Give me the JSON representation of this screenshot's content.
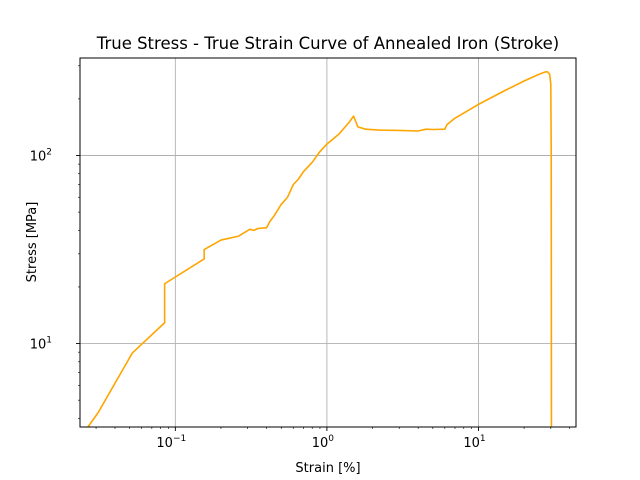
{
  "chart_data": {
    "type": "line",
    "title": "True Stress - True Strain Curve of Annealed Iron (Stroke)",
    "xlabel": "Strain [%]",
    "ylabel": "Stress [MPa]",
    "xscale": "log",
    "yscale": "log",
    "xlim": [
      0.0235,
      44
    ],
    "ylim": [
      3.6,
      330
    ],
    "grid": true,
    "x_ticks": [
      {
        "value": 0.1,
        "base": "10",
        "exp": "−1"
      },
      {
        "value": 1,
        "base": "10",
        "exp": "0"
      },
      {
        "value": 10,
        "base": "10",
        "exp": "1"
      }
    ],
    "y_ticks": [
      {
        "value": 10,
        "base": "10",
        "exp": "1"
      },
      {
        "value": 100,
        "base": "10",
        "exp": "2"
      }
    ],
    "series": [
      {
        "color": "#ffa500",
        "x": [
          0.0265,
          0.031,
          0.052,
          0.085,
          0.085,
          0.155,
          0.155,
          0.2,
          0.26,
          0.31,
          0.33,
          0.35,
          0.4,
          0.42,
          0.45,
          0.5,
          0.55,
          0.6,
          0.65,
          0.7,
          0.8,
          0.9,
          1.0,
          1.2,
          1.4,
          1.5,
          1.6,
          1.8,
          2.2,
          3,
          4,
          4.5,
          5,
          6,
          6.2,
          7,
          10,
          15,
          20,
          25,
          27.5,
          28.5,
          29.5,
          30.0,
          30.2,
          30.3
        ],
        "y": [
          3.6,
          4.3,
          8.9,
          12.9,
          20.8,
          28.2,
          31.6,
          35.5,
          37.2,
          40.5,
          40.0,
          40.9,
          41.3,
          44.5,
          48.0,
          55.0,
          60.0,
          70.0,
          75.0,
          82.0,
          92.0,
          105.0,
          115.0,
          130.0,
          150.0,
          162.0,
          142.0,
          138.0,
          136.5,
          136.0,
          135.0,
          138.0,
          137.5,
          138.0,
          146.0,
          158.0,
          187.0,
          222.0,
          249.0,
          270.0,
          278.0,
          279.0,
          270.0,
          240.0,
          100.0,
          3.6
        ]
      }
    ]
  }
}
